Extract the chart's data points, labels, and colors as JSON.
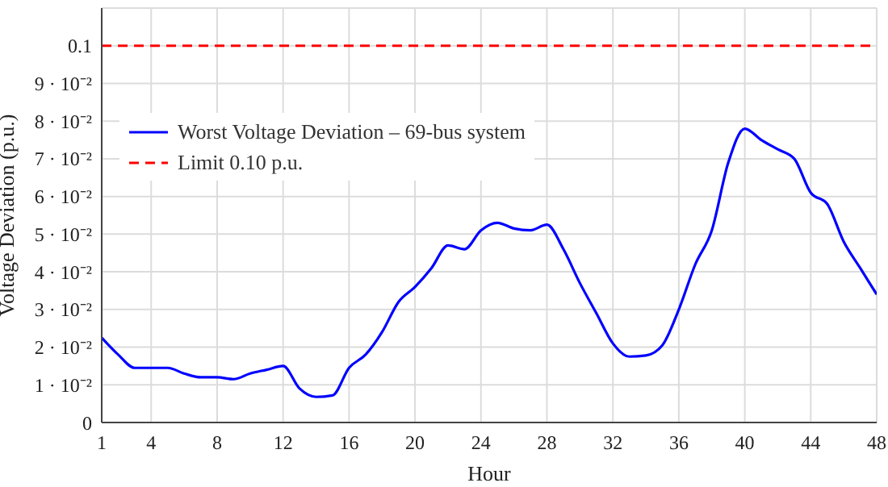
{
  "chart_data": {
    "type": "line",
    "xlabel": "Hour",
    "ylabel": "Voltage Deviation (p.u.)",
    "x": [
      1,
      2,
      3,
      4,
      5,
      6,
      7,
      8,
      9,
      10,
      11,
      12,
      13,
      14,
      15,
      16,
      17,
      18,
      19,
      20,
      21,
      22,
      23,
      24,
      25,
      26,
      27,
      28,
      29,
      30,
      31,
      32,
      33,
      34,
      35,
      36,
      37,
      38,
      39,
      40,
      41,
      42,
      43,
      44,
      45,
      46,
      47,
      48
    ],
    "series": [
      {
        "name": "Worst Voltage Deviation – 69-bus system",
        "color": "#0000ff",
        "values": [
          0.0225,
          0.018,
          0.0145,
          0.0145,
          0.0145,
          0.013,
          0.012,
          0.012,
          0.0115,
          0.013,
          0.014,
          0.015,
          0.009,
          0.0068,
          0.0072,
          0.0145,
          0.018,
          0.024,
          0.032,
          0.036,
          0.041,
          0.047,
          0.046,
          0.051,
          0.053,
          0.0515,
          0.051,
          0.0525,
          0.046,
          0.037,
          0.029,
          0.021,
          0.0175,
          0.0178,
          0.0205,
          0.03,
          0.042,
          0.051,
          0.069,
          0.078,
          0.075,
          0.0725,
          0.07,
          0.061,
          0.058,
          0.048,
          0.041,
          0.034
        ]
      }
    ],
    "ref_lines": [
      {
        "axis": "y",
        "value": 0.1,
        "label": "Limit 0.10 p.u.",
        "color": "#ff0000",
        "line_style": "dashed"
      }
    ],
    "xlim": [
      1,
      48
    ],
    "xticks": [
      1,
      4,
      8,
      12,
      16,
      20,
      24,
      28,
      32,
      36,
      40,
      44,
      48
    ],
    "ylim": [
      0,
      0.11
    ],
    "yticks": [
      0,
      {
        "value": 0.01,
        "label": "1 · 10⁻²"
      },
      {
        "value": 0.02,
        "label": "2 · 10⁻²"
      },
      {
        "value": 0.03,
        "label": "3 · 10⁻²"
      },
      {
        "value": 0.04,
        "label": "4 · 10⁻²"
      },
      {
        "value": 0.05,
        "label": "5 · 10⁻²"
      },
      {
        "value": 0.06,
        "label": "6 · 10⁻²"
      },
      {
        "value": 0.07,
        "label": "7 · 10⁻²"
      },
      {
        "value": 0.08,
        "label": "8 · 10⁻²"
      },
      {
        "value": 0.09,
        "label": "9 · 10⁻²"
      },
      0.1
    ],
    "grid": true,
    "legend": "top left",
    "marker": "none",
    "line_style": "solid"
  }
}
